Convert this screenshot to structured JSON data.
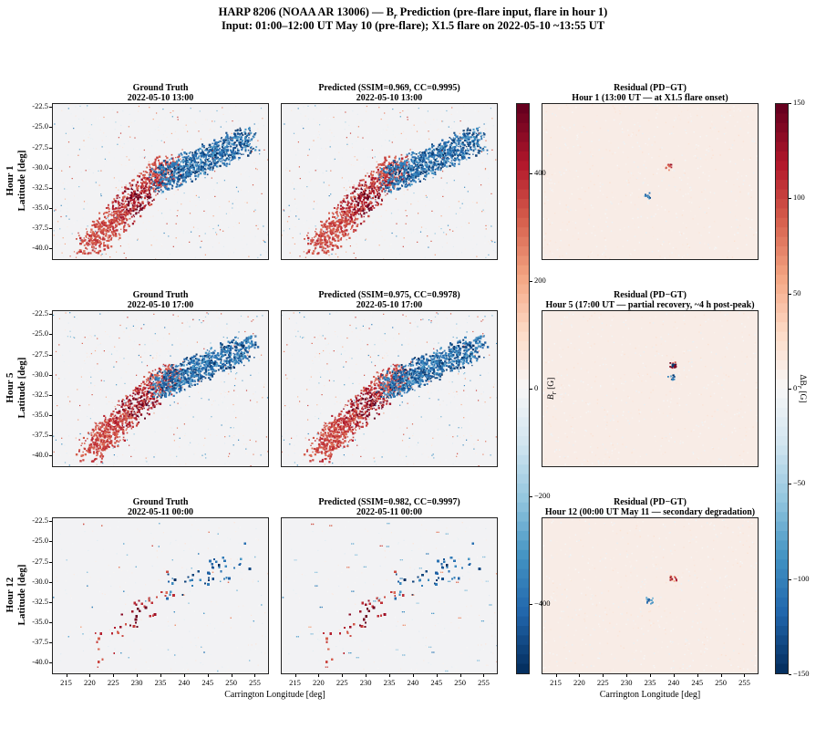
{
  "suptitle": {
    "line1": "HARP 8206 (NOAA AR 13006) — B",
    "line1_sub": "r",
    "line1_rest": " Prediction (pre-flare input, flare in hour 1)",
    "line2": "Input: 01:00–12:00 UT May 10 (pre-flare); X1.5 flare on 2022-05-10 ~13:55 UT"
  },
  "rows": [
    {
      "row_label": "Hour 1",
      "gt_title": "Ground Truth",
      "gt_time": "2022-05-10 13:00",
      "pred_title": "Predicted (SSIM=0.969, CC=0.9995)",
      "pred_time": "2022-05-10 13:00",
      "res_title": "Residual (PD−GT)",
      "res_subtitle": "Hour 1 (13:00 UT — at X1.5 flare onset)"
    },
    {
      "row_label": "Hour 5",
      "gt_title": "Ground Truth",
      "gt_time": "2022-05-10 17:00",
      "pred_title": "Predicted (SSIM=0.975, CC=0.9978)",
      "pred_time": "2022-05-10 17:00",
      "res_title": "Residual (PD−GT)",
      "res_subtitle": "Hour 5 (17:00 UT — partial recovery, ~4 h post-peak)"
    },
    {
      "row_label": "Hour 12",
      "gt_title": "Ground Truth",
      "gt_time": "2022-05-11 00:00",
      "pred_title": "Predicted (SSIM=0.982, CC=0.9997)",
      "pred_time": "2022-05-11 00:00",
      "res_title": "Residual (PD−GT)",
      "res_subtitle": "Hour 12 (00:00 UT May 11 — secondary degradation)"
    }
  ],
  "axes": {
    "ylabel": "Latitude [deg]",
    "xlabel": "Carrington Longitude [deg]",
    "yticks": [
      "-22.5",
      "-25.0",
      "-27.5",
      "-30.0",
      "-32.5",
      "-35.0",
      "-37.5",
      "-40.0"
    ],
    "xticks": [
      "215",
      "220",
      "225",
      "230",
      "235",
      "240",
      "245",
      "250",
      "255"
    ]
  },
  "colorbar_br": {
    "label": "B",
    "label_sub": "r",
    "unit": " [G]",
    "ticks": [
      "400",
      "200",
      "0",
      "−200",
      "−400"
    ]
  },
  "colorbar_res": {
    "label": "ΔB",
    "label_sub": "r",
    "unit": " [G]",
    "ticks": [
      "150",
      "100",
      "50",
      "0",
      "−50",
      "−100",
      "−150"
    ]
  },
  "colors": {
    "positive": "#67001f",
    "negative": "#053061",
    "neutral": "#f7f7f7",
    "cmap": "RdBu_r"
  },
  "chart_data": [
    {
      "type": "heatmap",
      "title": "Ground Truth / Predicted B_r maps",
      "xlabel": "Carrington Longitude [deg]",
      "ylabel": "Latitude [deg]",
      "xlim": [
        212,
        258
      ],
      "ylim": [
        -41.5,
        -22
      ],
      "clim": [
        -500,
        500
      ],
      "colormap": "RdBu_r",
      "description_values": {
        "positive_polarity_center": [
          230,
          -35
        ],
        "negative_polarity_center": [
          240,
          -28
        ]
      }
    },
    {
      "type": "heatmap",
      "title": "Residual (PD−GT)",
      "xlabel": "Carrington Longitude [deg]",
      "xlim": [
        212,
        258
      ],
      "ylim": [
        -41.5,
        -22
      ],
      "clim": [
        -150,
        150
      ],
      "colormap": "RdBu_r",
      "description_values": {
        "hour1_feature": [
          234,
          -30
        ],
        "hour5_feature": [
          239,
          -29
        ],
        "hour12_feature": [
          239,
          -31
        ]
      }
    }
  ]
}
